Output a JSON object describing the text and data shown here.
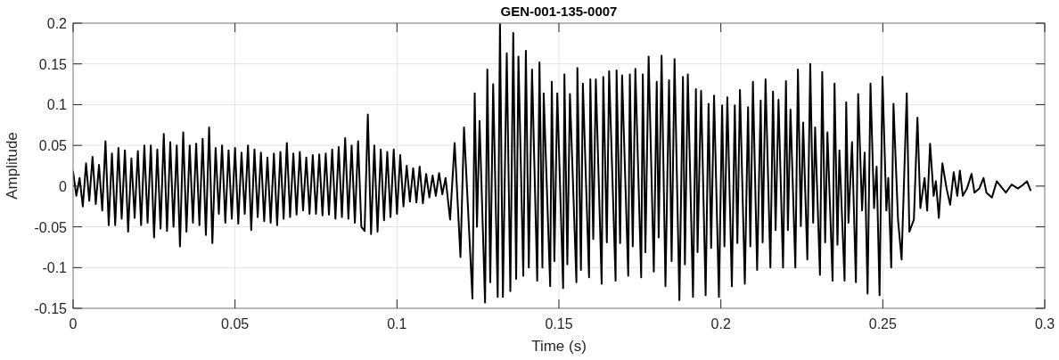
{
  "chart_data": {
    "type": "line",
    "title": "GEN-001-135-0007",
    "xlabel": "Time (s)",
    "ylabel": "Amplitude",
    "x": [
      0,
      0.001,
      0.002,
      0.003,
      0.004,
      0.005,
      0.006,
      0.007,
      0.008,
      0.009,
      0.01,
      0.011,
      0.012,
      0.013,
      0.014,
      0.015,
      0.016,
      0.017,
      0.018,
      0.019,
      0.02,
      0.021,
      0.022,
      0.023,
      0.024,
      0.025,
      0.026,
      0.027,
      0.028,
      0.029,
      0.03,
      0.031,
      0.032,
      0.033,
      0.034,
      0.035,
      0.036,
      0.037,
      0.038,
      0.039,
      0.04,
      0.041,
      0.042,
      0.043,
      0.044,
      0.045,
      0.046,
      0.047,
      0.048,
      0.049,
      0.05,
      0.051,
      0.052,
      0.053,
      0.054,
      0.055,
      0.056,
      0.057,
      0.058,
      0.059,
      0.06,
      0.061,
      0.062,
      0.063,
      0.064,
      0.065,
      0.066,
      0.067,
      0.068,
      0.069,
      0.07,
      0.071,
      0.072,
      0.073,
      0.074,
      0.075,
      0.076,
      0.077,
      0.078,
      0.079,
      0.08,
      0.081,
      0.082,
      0.083,
      0.084,
      0.085,
      0.086,
      0.087,
      0.088,
      0.089,
      0.09,
      0.091,
      0.092,
      0.093,
      0.094,
      0.095,
      0.096,
      0.097,
      0.098,
      0.099,
      0.1,
      0.101,
      0.102,
      0.103,
      0.104,
      0.105,
      0.106,
      0.107,
      0.108,
      0.109,
      0.11,
      0.111,
      0.112,
      0.113,
      0.114,
      0.115,
      0.1164,
      0.1178,
      0.1196,
      0.1207,
      0.1233,
      0.124,
      0.1247,
      0.1255,
      0.1272,
      0.1279,
      0.1288,
      0.1297,
      0.1311,
      0.1318,
      0.1327,
      0.1339,
      0.135,
      0.1359,
      0.1368,
      0.1375,
      0.139,
      0.1398,
      0.1407,
      0.1417,
      0.1433,
      0.144,
      0.1449,
      0.1453,
      0.1473,
      0.1478,
      0.1486,
      0.1495,
      0.1513,
      0.1517,
      0.1526,
      0.1534,
      0.1554,
      0.1557,
      0.1568,
      0.1574,
      0.1593,
      0.1597,
      0.1606,
      0.1614,
      0.1632,
      0.1637,
      0.1648,
      0.1655,
      0.1675,
      0.1678,
      0.1689,
      0.1695,
      0.1714,
      0.1719,
      0.1728,
      0.1736,
      0.1754,
      0.1759,
      0.1767,
      0.1777,
      0.1793,
      0.1802,
      0.1808,
      0.1817,
      0.1829,
      0.184,
      0.1848,
      0.1857,
      0.1872,
      0.1883,
      0.1889,
      0.1898,
      0.1914,
      0.1923,
      0.1928,
      0.1939,
      0.1953,
      0.1962,
      0.197,
      0.1979,
      0.1994,
      0.2004,
      0.2011,
      0.202,
      0.2034,
      0.2043,
      0.2051,
      0.2059,
      0.2074,
      0.2084,
      0.2091,
      0.2099,
      0.2112,
      0.2123,
      0.2129,
      0.2138,
      0.2153,
      0.2161,
      0.2169,
      0.2178,
      0.2192,
      0.2201,
      0.2207,
      0.2215,
      0.223,
      0.2238,
      0.2247,
      0.2254,
      0.2267,
      0.2276,
      0.2285,
      0.2291,
      0.2306,
      0.2313,
      0.2322,
      0.2329,
      0.2345,
      0.2351,
      0.236,
      0.2366,
      0.2382,
      0.2387,
      0.2394,
      0.2405,
      0.2417,
      0.2424,
      0.2436,
      0.2444,
      0.2453,
      0.2462,
      0.2473,
      0.2481,
      0.249,
      0.2499,
      0.2511,
      0.2517,
      0.2526,
      0.2533,
      0.2547,
      0.2558,
      0.2574,
      0.2582,
      0.2596,
      0.2607,
      0.2616,
      0.2629,
      0.2637,
      0.2646,
      0.2657,
      0.2664,
      0.2673,
      0.2684,
      0.2697,
      0.2708,
      0.2719,
      0.273,
      0.2738,
      0.2747,
      0.276,
      0.2774,
      0.2783,
      0.2798,
      0.2811,
      0.282,
      0.2837,
      0.2852,
      0.2866,
      0.288,
      0.2898,
      0.2917,
      0.2931,
      0.2945,
      0.2956
    ],
    "series": [
      {
        "color": "#000000",
        "values": [
          0.018,
          -0.012,
          0.01,
          -0.025,
          0.028,
          -0.018,
          0.036,
          -0.022,
          0.026,
          -0.03,
          0.055,
          -0.048,
          0.04,
          -0.048,
          0.047,
          -0.04,
          0.044,
          -0.056,
          0.034,
          -0.039,
          0.043,
          -0.048,
          0.05,
          -0.045,
          0.05,
          -0.063,
          0.045,
          -0.052,
          0.064,
          -0.055,
          0.054,
          -0.05,
          0.05,
          -0.074,
          0.066,
          -0.056,
          0.05,
          -0.045,
          0.052,
          -0.048,
          0.058,
          -0.06,
          0.072,
          -0.07,
          0.047,
          -0.034,
          0.05,
          -0.045,
          0.044,
          -0.04,
          0.047,
          -0.046,
          0.041,
          -0.034,
          0.05,
          -0.054,
          0.045,
          -0.038,
          0.041,
          -0.043,
          0.035,
          -0.045,
          0.04,
          -0.048,
          0.042,
          -0.04,
          0.053,
          -0.038,
          0.04,
          -0.035,
          0.042,
          -0.03,
          0.035,
          -0.034,
          0.038,
          -0.034,
          0.039,
          -0.036,
          0.04,
          -0.035,
          0.045,
          -0.04,
          0.048,
          -0.038,
          0.059,
          -0.04,
          0.05,
          -0.045,
          0.055,
          -0.05,
          -0.055,
          0.088,
          -0.059,
          0.05,
          -0.056,
          0.045,
          -0.042,
          0.042,
          -0.038,
          0.045,
          -0.034,
          0.038,
          -0.025,
          0.025,
          -0.019,
          0.022,
          -0.02,
          0.024,
          -0.021,
          0.015,
          -0.014,
          0.013,
          -0.012,
          0.016,
          -0.01,
          0.01,
          -0.041,
          0.053,
          -0.087,
          0.072,
          -0.138,
          0.114,
          -0.05,
          0.08,
          -0.143,
          0.143,
          -0.118,
          0.125,
          -0.136,
          0.199,
          -0.136,
          0.163,
          -0.129,
          0.188,
          -0.114,
          0.159,
          -0.11,
          0.166,
          -0.1,
          0.143,
          -0.116,
          0.152,
          -0.1,
          0.114,
          -0.123,
          0.128,
          -0.092,
          0.114,
          -0.125,
          0.137,
          -0.096,
          0.113,
          -0.118,
          0.145,
          -0.103,
          0.126,
          -0.112,
          0.131,
          -0.065,
          0.131,
          -0.12,
          0.134,
          -0.069,
          0.141,
          -0.116,
          0.142,
          -0.07,
          0.136,
          -0.11,
          0.137,
          -0.074,
          0.144,
          -0.112,
          0.137,
          -0.081,
          0.159,
          -0.105,
          0.128,
          -0.063,
          0.16,
          -0.123,
          0.13,
          -0.092,
          0.156,
          -0.14,
          0.134,
          -0.096,
          0.137,
          -0.136,
          0.119,
          -0.081,
          0.117,
          -0.134,
          0.101,
          -0.076,
          0.111,
          -0.136,
          0.099,
          -0.074,
          0.109,
          -0.123,
          0.099,
          -0.07,
          0.118,
          -0.12,
          0.097,
          -0.074,
          0.128,
          -0.103,
          0.105,
          -0.069,
          0.131,
          -0.1,
          0.116,
          -0.054,
          0.106,
          -0.1,
          0.129,
          -0.054,
          0.094,
          -0.1,
          0.143,
          -0.049,
          0.078,
          -0.09,
          0.15,
          -0.045,
          0.072,
          -0.109,
          0.14,
          -0.069,
          0.066,
          -0.116,
          0.126,
          -0.072,
          0.044,
          -0.116,
          0.103,
          -0.045,
          0.054,
          -0.118,
          0.113,
          -0.03,
          0.041,
          -0.132,
          0.126,
          -0.027,
          0.024,
          -0.134,
          0.134,
          -0.03,
          0.01,
          -0.1,
          0.101,
          -0.041,
          -0.09,
          0.114,
          -0.056,
          -0.041,
          0.084,
          -0.027,
          0.01,
          -0.03,
          0.052,
          -0.012,
          0.006,
          -0.039,
          0.028,
          -0.003,
          -0.023,
          0.017,
          -0.012,
          0.019,
          -0.012,
          -0.003,
          0.015,
          -0.008,
          -0.003,
          0.01,
          -0.008,
          -0.014,
          0.006,
          -0.001,
          -0.008,
          0.002,
          -0.003,
          0.001,
          0.006,
          -0.005
        ]
      }
    ],
    "xlim": [
      0,
      0.3
    ],
    "ylim": [
      -0.15,
      0.2
    ],
    "xticks": [
      0,
      0.05,
      0.1,
      0.15,
      0.2,
      0.25,
      0.3
    ],
    "yticks": [
      -0.15,
      -0.1,
      -0.05,
      0,
      0.05,
      0.1,
      0.15,
      0.2
    ],
    "grid": true
  }
}
